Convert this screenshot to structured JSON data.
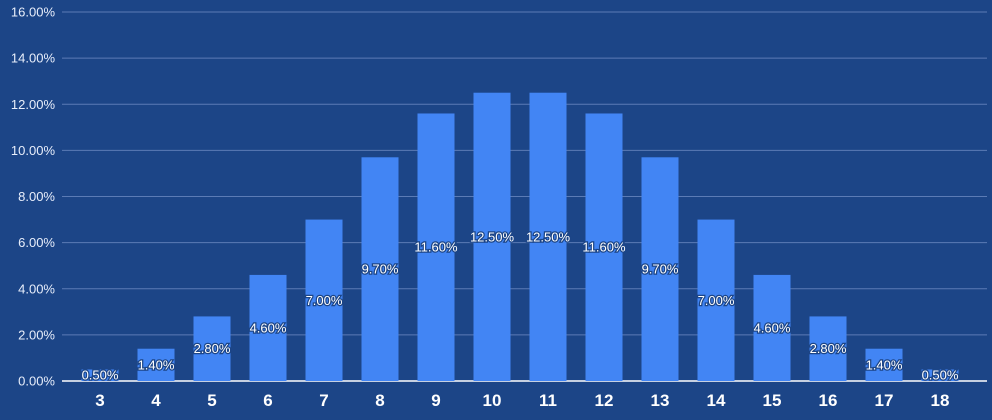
{
  "chart_data": {
    "type": "bar",
    "title": "",
    "xlabel": "",
    "ylabel": "",
    "categories": [
      "3",
      "4",
      "5",
      "6",
      "7",
      "8",
      "9",
      "10",
      "11",
      "12",
      "13",
      "14",
      "15",
      "16",
      "17",
      "18"
    ],
    "values": [
      0.5,
      1.4,
      2.8,
      4.6,
      7.0,
      9.7,
      11.6,
      12.5,
      12.5,
      11.6,
      9.7,
      7.0,
      4.6,
      2.8,
      1.4,
      0.5
    ],
    "data_labels": [
      "0.50%",
      "1.40%",
      "2.80%",
      "4.60%",
      "7.00%",
      "9.70%",
      "11.60%",
      "12.50%",
      "12.50%",
      "11.60%",
      "9.70%",
      "7.00%",
      "4.60%",
      "2.80%",
      "1.40%",
      "0.50%"
    ],
    "ylim": [
      0,
      16
    ],
    "yticks": [
      0,
      2,
      4,
      6,
      8,
      10,
      12,
      14,
      16
    ],
    "ytick_labels": [
      "0.00%",
      "2.00%",
      "4.00%",
      "6.00%",
      "8.00%",
      "10.00%",
      "12.00%",
      "14.00%",
      "16.00%"
    ],
    "grid": true,
    "legend": "none",
    "colors": {
      "background": "#1c4587",
      "bar": "#4285f4",
      "grid": "#5b7bb5",
      "axis": "#ffffff",
      "text": "#ffffff"
    }
  }
}
